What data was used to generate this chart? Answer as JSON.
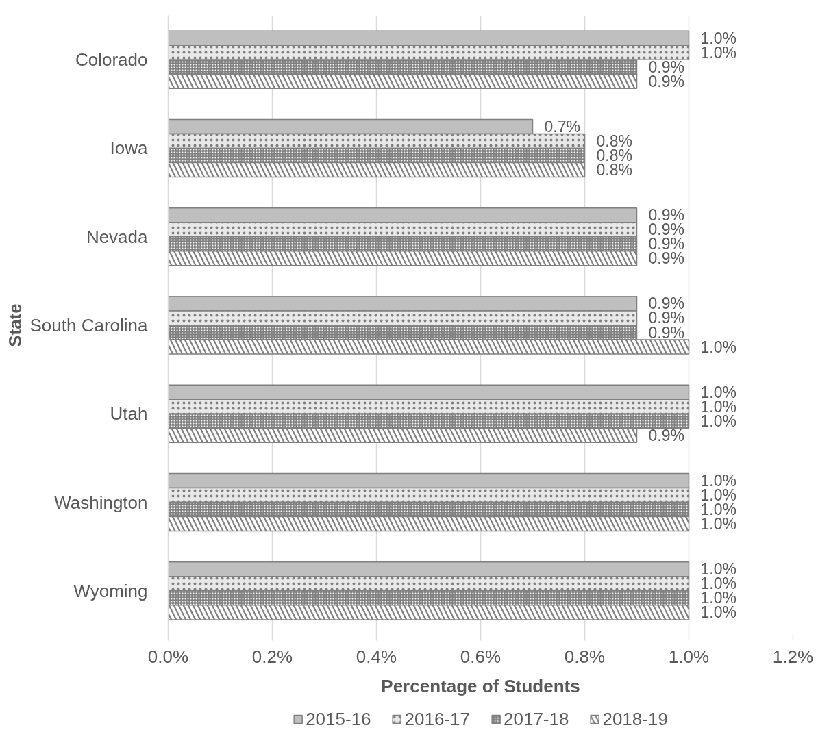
{
  "chart_data": {
    "type": "bar",
    "orientation": "horizontal",
    "xlabel": "Percentage of Students",
    "ylabel": "State",
    "categories": [
      "Colorado",
      "Iowa",
      "Nevada",
      "South Carolina",
      "Utah",
      "Washington",
      "Wyoming"
    ],
    "series": [
      {
        "name": "2015-16",
        "color": "#bfbfbf",
        "values": [
          1.0,
          0.7,
          0.9,
          0.9,
          1.0,
          1.0,
          1.0
        ],
        "value_labels": [
          "1.0%",
          "0.7%",
          "0.9%",
          "0.9%",
          "1.0%",
          "1.0%",
          "1.0%"
        ]
      },
      {
        "name": "2016-17",
        "color": "#e8e8e8",
        "values": [
          1.0,
          0.8,
          0.9,
          0.9,
          1.0,
          1.0,
          1.0
        ],
        "value_labels": [
          "1.0%",
          "0.8%",
          "0.9%",
          "0.9%",
          "1.0%",
          "1.0%",
          "1.0%"
        ]
      },
      {
        "name": "2017-18",
        "color": "#808080",
        "values": [
          0.9,
          0.8,
          0.9,
          0.9,
          1.0,
          1.0,
          1.0
        ],
        "value_labels": [
          "0.9%",
          "0.8%",
          "0.9%",
          "0.9%",
          "1.0%",
          "1.0%",
          "1.0%"
        ]
      },
      {
        "name": "2018-19",
        "color": "#808080",
        "values": [
          0.9,
          0.8,
          0.9,
          1.0,
          0.9,
          1.0,
          1.0
        ],
        "value_labels": [
          "0.9%",
          "0.8%",
          "0.9%",
          "1.0%",
          "0.9%",
          "1.0%",
          "1.0%"
        ]
      }
    ],
    "xlim": [
      0,
      1.2
    ],
    "xticks": [
      {
        "value": 0,
        "label": "0.0%"
      },
      {
        "value": 0.2,
        "label": "0.2%"
      },
      {
        "value": 0.4,
        "label": "0.4%"
      },
      {
        "value": 0.6,
        "label": "0.6%"
      },
      {
        "value": 0.8,
        "label": "0.8%"
      },
      {
        "value": 1.0,
        "label": "1.0%"
      },
      {
        "value": 1.2,
        "label": "1.2%"
      }
    ],
    "grid": "x",
    "legend": "bottom"
  }
}
